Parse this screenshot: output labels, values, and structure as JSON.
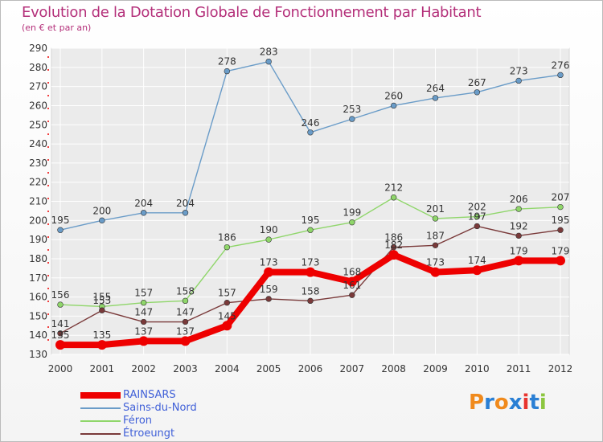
{
  "title": "Evolution de la Dotation Globale de Fonctionnement par Habitant",
  "subtitle": "(en € et par an)",
  "brand": {
    "text": "Proxiti",
    "colors": [
      "#f08a1c",
      "#2a7fd4",
      "#f08a1c",
      "#2a7fd4",
      "#e8342e",
      "#2a7fd4",
      "#8cc63f"
    ]
  },
  "chart_data": {
    "type": "line",
    "x": [
      2000,
      2001,
      2002,
      2003,
      2004,
      2005,
      2006,
      2007,
      2008,
      2009,
      2010,
      2011,
      2012
    ],
    "ylim": [
      130,
      290
    ],
    "yticks": [
      130,
      140,
      150,
      160,
      170,
      180,
      190,
      200,
      210,
      220,
      230,
      240,
      250,
      260,
      270,
      280,
      290
    ],
    "grid": true,
    "legend_position": "bottom-left",
    "series": [
      {
        "name": "RAINSARS",
        "color": "#ee0000",
        "values": [
          135,
          135,
          137,
          137,
          145,
          173,
          173,
          168,
          182,
          173,
          174,
          179,
          179
        ]
      },
      {
        "name": "Sains-du-Nord",
        "color": "#6a9cc8",
        "values": [
          195,
          200,
          204,
          204,
          278,
          283,
          246,
          253,
          260,
          264,
          267,
          273,
          276
        ]
      },
      {
        "name": "Féron",
        "color": "#8fd66a",
        "values": [
          156,
          155,
          157,
          158,
          186,
          190,
          195,
          199,
          212,
          201,
          202,
          206,
          207
        ]
      },
      {
        "name": "Étroeungt",
        "color": "#7a3a3a",
        "values": [
          141,
          153,
          147,
          147,
          157,
          159,
          158,
          161,
          186,
          187,
          197,
          192,
          195
        ]
      }
    ]
  }
}
